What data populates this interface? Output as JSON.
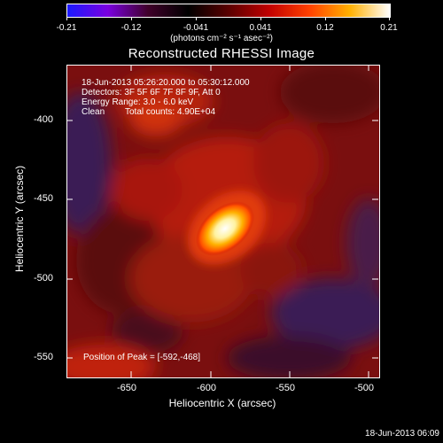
{
  "colorbar": {
    "tick_labels": [
      "-0.21",
      "-0.12",
      "-0.041",
      "0.041",
      "0.12",
      "0.21"
    ],
    "units_label": "(photons cm⁻² s⁻¹ asec⁻²)",
    "gradient_colors": [
      "#1a1aff",
      "#7a00e0",
      "#40002a",
      "#000000",
      "#5a0000",
      "#c00000",
      "#ff4000",
      "#ffb000",
      "#ffffff"
    ]
  },
  "title": "Reconstructed RHESSI Image",
  "overlay": {
    "line1": "18-Jun-2013 05:26:20.000 to 05:30:12.000",
    "line2": "Detectors: 3F 5F 6F 7F 8F 9F, Att 0",
    "line3": "Energy Range: 3.0 - 6.0 keV",
    "line4_a": "Clean",
    "line4_b": "Total counts: 4.90E+04",
    "peak": "Position of Peak = [-592,-468]"
  },
  "axes": {
    "xlabel": "Heliocentric X (arcsec)",
    "ylabel": "Heliocentric Y (arcsec)",
    "x_ticks": [
      "-650",
      "-600",
      "-550",
      "-500"
    ],
    "y_ticks": [
      "-400",
      "-450",
      "-500",
      "-550"
    ]
  },
  "timestamp": "18-Jun-2013 06:09"
}
